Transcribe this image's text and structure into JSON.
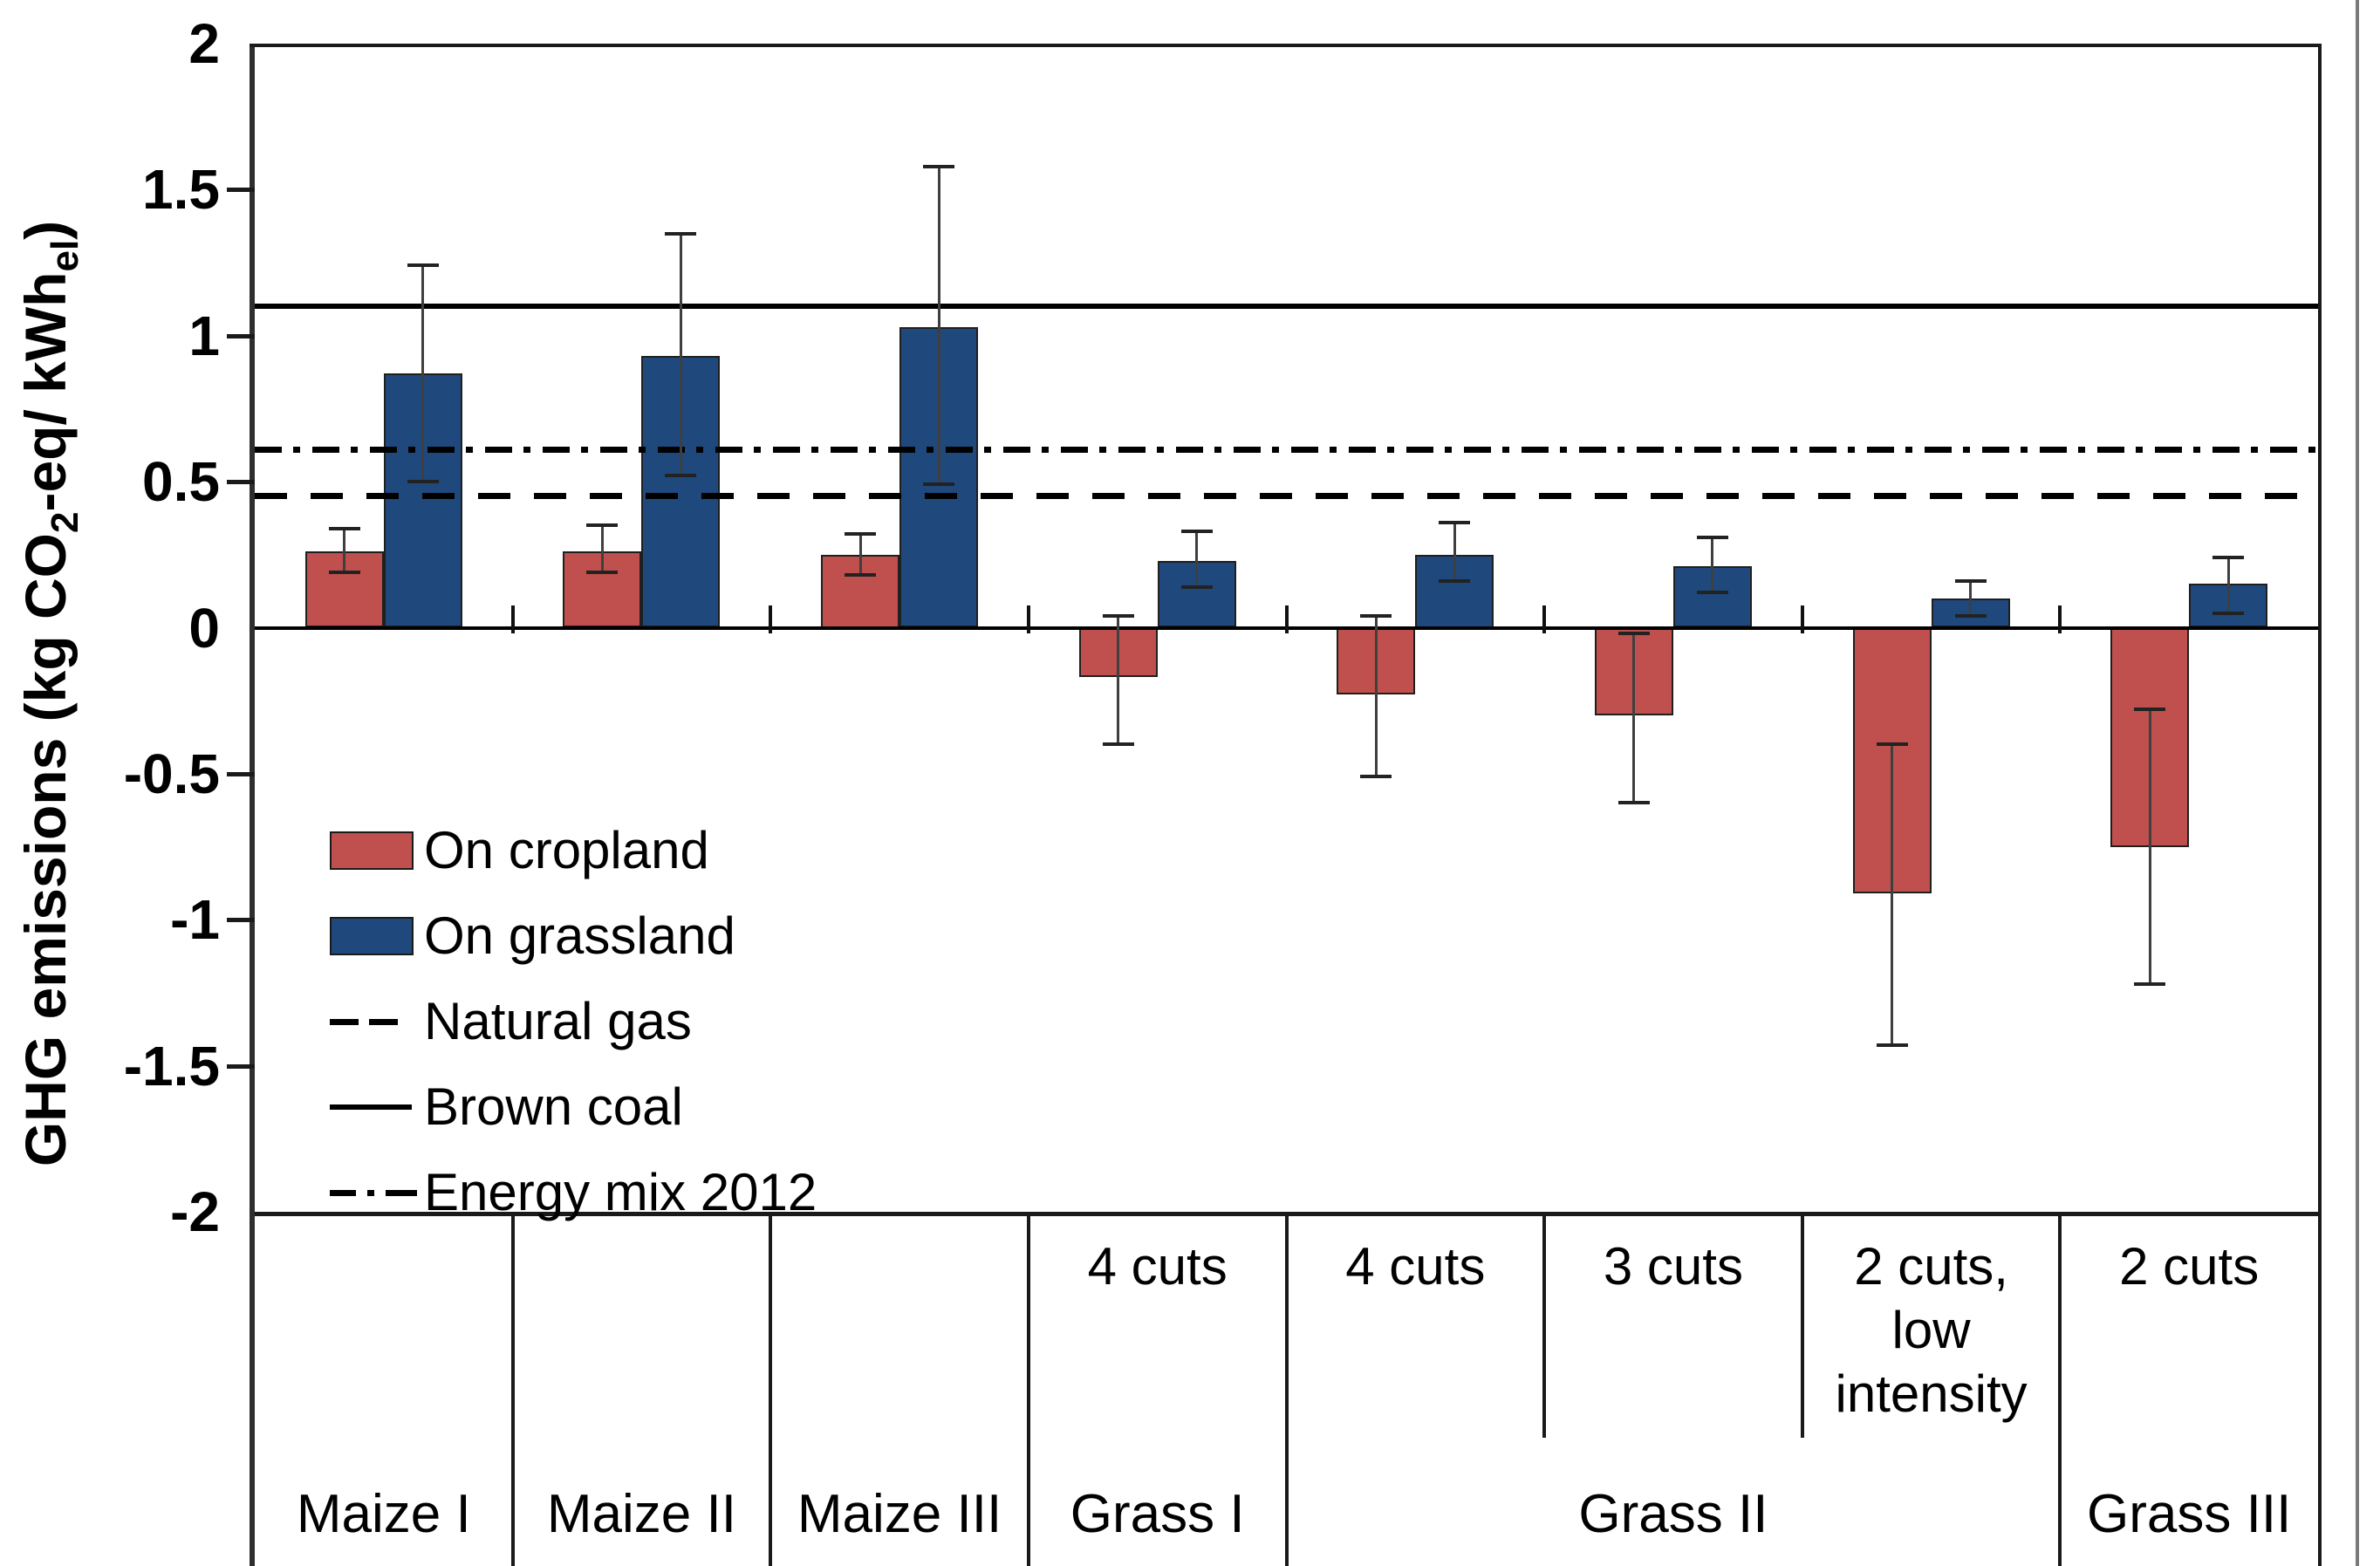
{
  "figure": {
    "y_axis": {
      "title_parts": [
        "GHG emissions (kg CO",
        "2",
        "-eq/ kWh",
        "el",
        ")"
      ],
      "tick_labels": [
        "2",
        "1.5",
        "1",
        "0.5",
        "0",
        "-0.5",
        "-1",
        "-1.5",
        "-2"
      ]
    }
  },
  "chart_data": {
    "type": "bar",
    "title": "",
    "xlabel": "",
    "ylabel": "GHG emissions (kg CO2-eq/ kWhel)",
    "ylim": [
      -2,
      2
    ],
    "ytick_step": 0.5,
    "grid": false,
    "legend_position": "inside-left",
    "colors": {
      "cropland": "#C0504D",
      "grassland": "#1F497D",
      "bar_border": "#1f1f1f",
      "error_bar": "#3f3f3f",
      "axis": "#1a1a1a",
      "figure_edge": "#7a7a7a"
    },
    "series": [
      {
        "name": "On cropland",
        "key": "cropland"
      },
      {
        "name": "On grassland",
        "key": "grassland"
      }
    ],
    "reference_lines": [
      {
        "name": "Natural gas",
        "value": 0.45,
        "style": "dashed"
      },
      {
        "name": "Brown coal",
        "value": 1.1,
        "style": "solid"
      },
      {
        "name": "Energy mix 2012",
        "value": 0.61,
        "style": "dashdot"
      }
    ],
    "columns": [
      {
        "cuts": "",
        "cropland": {
          "value": 0.26,
          "err_lo": 0.19,
          "err_hi": 0.34
        },
        "grassland": {
          "value": 0.87,
          "err_lo": 0.5,
          "err_hi": 1.24
        }
      },
      {
        "cuts": "",
        "cropland": {
          "value": 0.26,
          "err_lo": 0.19,
          "err_hi": 0.35
        },
        "grassland": {
          "value": 0.93,
          "err_lo": 0.52,
          "err_hi": 1.35
        }
      },
      {
        "cuts": "",
        "cropland": {
          "value": 0.25,
          "err_lo": 0.18,
          "err_hi": 0.32
        },
        "grassland": {
          "value": 1.03,
          "err_lo": 0.49,
          "err_hi": 1.58
        }
      },
      {
        "cuts": "4 cuts",
        "cropland": {
          "value": -0.17,
          "err_lo": -0.4,
          "err_hi": 0.04
        },
        "grassland": {
          "value": 0.23,
          "err_lo": 0.14,
          "err_hi": 0.33
        }
      },
      {
        "cuts": "4 cuts",
        "cropland": {
          "value": -0.23,
          "err_lo": -0.51,
          "err_hi": 0.04
        },
        "grassland": {
          "value": 0.25,
          "err_lo": 0.16,
          "err_hi": 0.36
        }
      },
      {
        "cuts": "3 cuts",
        "cropland": {
          "value": -0.3,
          "err_lo": -0.6,
          "err_hi": -0.02
        },
        "grassland": {
          "value": 0.21,
          "err_lo": 0.12,
          "err_hi": 0.31
        }
      },
      {
        "cuts": "2 cuts,\nlow\nintensity",
        "cropland": {
          "value": -0.91,
          "err_lo": -1.43,
          "err_hi": -0.4
        },
        "grassland": {
          "value": 0.1,
          "err_lo": 0.04,
          "err_hi": 0.16
        }
      },
      {
        "cuts": "2 cuts",
        "cropland": {
          "value": -0.75,
          "err_lo": -1.22,
          "err_hi": -0.28
        },
        "grassland": {
          "value": 0.15,
          "err_lo": 0.05,
          "err_hi": 0.24
        }
      }
    ],
    "crop_groups": [
      {
        "label": "Maize I",
        "start": 0,
        "span": 1
      },
      {
        "label": "Maize II",
        "start": 1,
        "span": 1
      },
      {
        "label": "Maize III",
        "start": 2,
        "span": 1
      },
      {
        "label": "Grass I",
        "start": 3,
        "span": 1
      },
      {
        "label": "Grass II",
        "start": 4,
        "span": 3
      },
      {
        "label": "Grass III",
        "start": 7,
        "span": 1
      }
    ],
    "legend": [
      {
        "label": "On cropland",
        "type": "swatch",
        "style": "cropland"
      },
      {
        "label": "On grassland",
        "type": "swatch",
        "style": "grassland"
      },
      {
        "label": "Natural gas",
        "type": "line",
        "style": "dashed"
      },
      {
        "label": "Brown coal",
        "type": "line",
        "style": "solid"
      },
      {
        "label": "Energy mix 2012",
        "type": "line",
        "style": "dashdot"
      }
    ]
  }
}
